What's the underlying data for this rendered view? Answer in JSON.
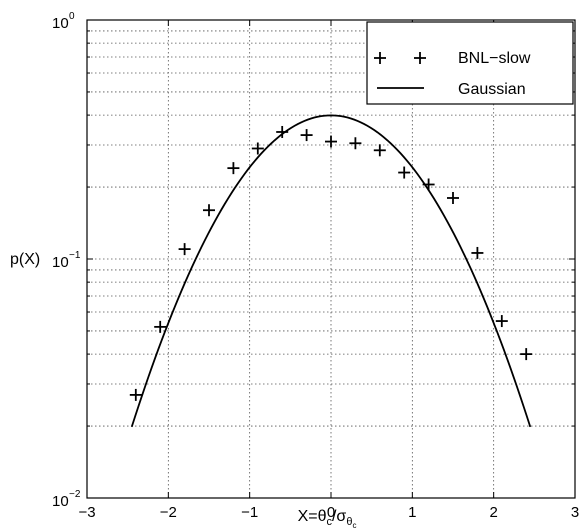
{
  "chart_data": {
    "type": "scatter",
    "title": "",
    "xlabel": "X=θ_c/σ_θc",
    "ylabel": "p(X)",
    "xlim": [
      -3,
      3
    ],
    "ylim": [
      0.01,
      1
    ],
    "yscale": "log",
    "grid": true,
    "legend_position": "top-right",
    "x_ticks": [
      -3,
      -2,
      -1,
      0,
      1,
      2,
      3
    ],
    "x_tick_labels": [
      "−3",
      "−2",
      "−1",
      "0",
      "1",
      "2",
      "3"
    ],
    "y_ticks": [
      0.01,
      0.1,
      1
    ],
    "y_tick_labels": [
      {
        "base": "10",
        "exp": "−2"
      },
      {
        "base": "10",
        "exp": "−1"
      },
      {
        "base": "10",
        "exp": "0"
      }
    ],
    "xlabel_parts": {
      "lhs": "X=θ",
      "sub1": "c",
      "slash": "/σ",
      "sub2": "θ",
      "sub3": "c"
    },
    "series": [
      {
        "name": "BNL−slow",
        "marker": "+",
        "x": [
          -2.4,
          -2.1,
          -1.8,
          -1.5,
          -1.2,
          -0.9,
          -0.6,
          -0.3,
          0.0,
          0.3,
          0.6,
          0.9,
          1.2,
          1.5,
          1.8,
          2.1,
          2.4
        ],
        "y": [
          0.027,
          0.052,
          0.11,
          0.16,
          0.24,
          0.29,
          0.34,
          0.33,
          0.31,
          0.305,
          0.285,
          0.23,
          0.205,
          0.18,
          0.106,
          0.055,
          0.04
        ]
      },
      {
        "name": "Gaussian",
        "marker": "line",
        "x_range": [
          -2.45,
          2.45
        ]
      }
    ],
    "colors": {
      "ink": "#000000",
      "grid": "#555555",
      "background": "#ffffff"
    }
  }
}
